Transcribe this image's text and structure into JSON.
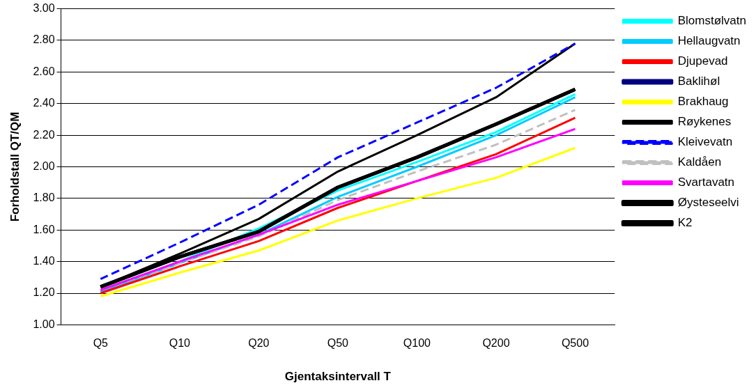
{
  "chart_data": {
    "type": "line",
    "xlabel": "Gjentaksintervall T",
    "ylabel": "Forholdstall QT/QM",
    "categories": [
      "Q5",
      "Q10",
      "Q20",
      "Q50",
      "Q100",
      "Q200",
      "Q500"
    ],
    "ylim": [
      1,
      3
    ],
    "yticks": [
      {
        "value": 1,
        "label": "1.00"
      },
      {
        "value": 1.2,
        "label": "1.20"
      },
      {
        "value": 1.4,
        "label": "1.40"
      },
      {
        "value": 1.6,
        "label": "1.60"
      },
      {
        "value": 1.8,
        "label": "1.80"
      },
      {
        "value": 2,
        "label": "2.00"
      },
      {
        "value": 2.2,
        "label": "2.20"
      },
      {
        "value": 2.4,
        "label": "2.40"
      },
      {
        "value": 2.6,
        "label": "2.60"
      },
      {
        "value": 2.8,
        "label": "2.80"
      },
      {
        "value": 3,
        "label": "3.00"
      }
    ],
    "grid": "y",
    "legend": "right",
    "marker": "none",
    "series": [
      {
        "name": "Blomstølvatn",
        "color": "#00ffff",
        "values": [
          1.22,
          1.4,
          1.61,
          1.85,
          2.03,
          2.22,
          2.46
        ]
      },
      {
        "name": "Hellaugvatn",
        "color": "#00ccff",
        "values": [
          1.21,
          1.39,
          1.57,
          1.81,
          2.0,
          2.2,
          2.44
        ]
      },
      {
        "name": "Djupevad",
        "color": "#ff0000",
        "values": [
          1.2,
          1.37,
          1.53,
          1.74,
          1.91,
          2.08,
          2.31
        ]
      },
      {
        "name": "Baklihøl",
        "color": "#000080",
        "values": [
          null,
          null,
          null,
          null,
          null,
          null,
          null
        ]
      },
      {
        "name": "Brakhaug",
        "color": "#ffff00",
        "values": [
          1.18,
          1.33,
          1.47,
          1.66,
          1.8,
          1.93,
          2.12
        ]
      },
      {
        "name": "Røykenes",
        "color": "#000000",
        "values": [
          1.24,
          1.45,
          1.67,
          1.97,
          2.2,
          2.44,
          2.78
        ]
      },
      {
        "name": "Kleivevatn",
        "color": "#0000ff",
        "line_style": "dashed",
        "values": [
          1.29,
          1.52,
          1.76,
          2.06,
          2.28,
          2.5,
          2.78
        ]
      },
      {
        "name": "Kaldåen",
        "color": "#c0c0c0",
        "line_style": "dashed",
        "values": [
          1.22,
          1.39,
          1.56,
          1.79,
          1.97,
          2.14,
          2.36
        ]
      },
      {
        "name": "Svartavatn",
        "color": "#ff00ff",
        "values": [
          1.22,
          1.4,
          1.57,
          1.76,
          1.91,
          2.06,
          2.24
        ]
      },
      {
        "name": "Øysteseelvi",
        "color": "#000000",
        "values": [
          1.24,
          1.43,
          1.59,
          1.87,
          2.06,
          2.27,
          2.49
        ]
      },
      {
        "name": "K2",
        "color": "#000000",
        "values": [
          1.24,
          1.43,
          1.59,
          1.87,
          2.06,
          2.27,
          2.49
        ]
      }
    ]
  }
}
